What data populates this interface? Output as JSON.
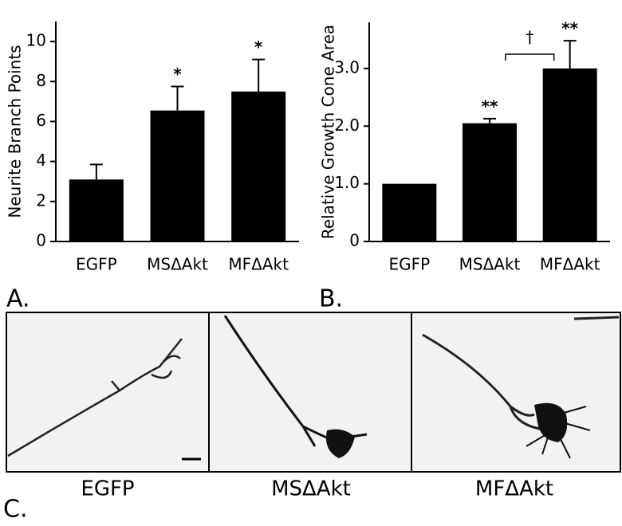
{
  "chart_data": [
    {
      "type": "bar",
      "y_label": "Neurite Branch Points",
      "categories": [
        "EGFP",
        "MSΔAkt",
        "MFΔAkt"
      ],
      "values": [
        3.1,
        6.55,
        7.5
      ],
      "errors": [
        0.75,
        1.2,
        1.6
      ],
      "annotations": [
        null,
        "*",
        "*"
      ],
      "color": "#000000",
      "ylim": [
        0,
        11
      ],
      "yticks": [
        0,
        2,
        4,
        6,
        8,
        10
      ]
    },
    {
      "type": "bar",
      "y_label": "Relative Growth Cone Area",
      "categories": [
        "EGFP",
        "MSΔAkt",
        "MFΔAkt"
      ],
      "values": [
        1.0,
        2.05,
        3.0
      ],
      "errors": [
        0,
        0.08,
        0.48
      ],
      "annotations": [
        null,
        "**",
        "**"
      ],
      "bracket_label": "†",
      "color": "#000000",
      "ylim": [
        0,
        3.8
      ],
      "yticks": [
        0,
        {
          "value": 1,
          "label": "1.0"
        },
        {
          "value": 2,
          "label": "2.0"
        },
        {
          "value": 3,
          "label": "3.0"
        }
      ]
    }
  ],
  "panels": {
    "a": "A.",
    "b": "B.",
    "c": "C."
  },
  "images": [
    "EGFP",
    "MSΔAkt",
    "MFΔAkt"
  ]
}
